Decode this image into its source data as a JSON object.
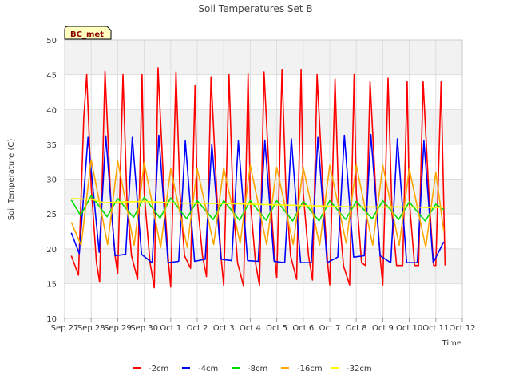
{
  "chart_data": {
    "type": "line",
    "title": "Soil Temperatures Set B",
    "xlabel": "Time",
    "ylabel": "Soil Temperature (C)",
    "station_label": "BC_met",
    "ylim": [
      10,
      50
    ],
    "yticks": [
      10,
      15,
      20,
      25,
      30,
      35,
      40,
      45,
      50
    ],
    "xlim": [
      0,
      15
    ],
    "xticks": [
      {
        "v": 0,
        "label": "Sep 27"
      },
      {
        "v": 1,
        "label": "Sep 28"
      },
      {
        "v": 2,
        "label": "Sep 29"
      },
      {
        "v": 3,
        "label": "Sep 30"
      },
      {
        "v": 4,
        "label": "Oct 1"
      },
      {
        "v": 5,
        "label": "Oct 2"
      },
      {
        "v": 6,
        "label": "Oct 3"
      },
      {
        "v": 7,
        "label": "Oct 4"
      },
      {
        "v": 8,
        "label": "Oct 5"
      },
      {
        "v": 9,
        "label": "Oct 6"
      },
      {
        "v": 10,
        "label": "Oct 7"
      },
      {
        "v": 11,
        "label": "Oct 8"
      },
      {
        "v": 12,
        "label": "Oct 9"
      },
      {
        "v": 13,
        "label": "Oct 10"
      },
      {
        "v": 14,
        "label": "Oct 11"
      },
      {
        "v": 15,
        "label": "Oct 12"
      }
    ],
    "grid": true,
    "legend_position": "bottom",
    "series": [
      {
        "name": "-2cm",
        "color": "#ff0000",
        "x": [
          0.25,
          0.52,
          0.72,
          0.83,
          1.0,
          1.2,
          1.32,
          1.52,
          1.75,
          1.9,
          2.0,
          2.2,
          2.35,
          2.52,
          2.75,
          2.92,
          3.0,
          3.22,
          3.38,
          3.52,
          3.75,
          3.92,
          4.0,
          4.2,
          4.35,
          4.52,
          4.75,
          4.92,
          5.0,
          5.2,
          5.35,
          5.52,
          5.75,
          5.92,
          6.0,
          6.2,
          6.35,
          6.52,
          6.75,
          6.92,
          7.0,
          7.2,
          7.35,
          7.52,
          7.75,
          7.92,
          8.0,
          8.2,
          8.35,
          8.52,
          8.75,
          8.92,
          9.0,
          9.2,
          9.35,
          9.52,
          9.75,
          9.92,
          10.0,
          10.2,
          10.35,
          10.52,
          10.75,
          10.92,
          11.0,
          11.2,
          11.35,
          11.52,
          11.75,
          11.92,
          12.0,
          12.2,
          12.35,
          12.52,
          12.75,
          12.92,
          13.0,
          13.2,
          13.35,
          13.52,
          13.75,
          13.92,
          14.0,
          14.2,
          14.35
        ],
        "y": [
          19.0,
          16.2,
          38.8,
          45.0,
          29.0,
          18.0,
          15.2,
          45.5,
          26.0,
          19.0,
          16.4,
          45.0,
          27.0,
          19.0,
          15.6,
          45.0,
          28.0,
          18.0,
          14.4,
          46.0,
          28.0,
          18.0,
          14.5,
          45.4,
          28.0,
          19.0,
          17.2,
          43.5,
          27.0,
          19.0,
          16.0,
          44.7,
          27.0,
          18.0,
          14.7,
          45.0,
          27.0,
          18.0,
          14.6,
          45.1,
          27.0,
          18.0,
          14.7,
          45.4,
          28.0,
          19.0,
          15.8,
          45.7,
          28.0,
          19.0,
          15.6,
          45.7,
          28.0,
          19.0,
          15.5,
          45.0,
          28.0,
          18.0,
          14.8,
          44.4,
          25.0,
          17.5,
          14.8,
          45.0,
          28.0,
          18.0,
          17.6,
          44.0,
          27.0,
          18.0,
          14.8,
          44.5,
          25.0,
          17.6,
          17.6,
          44.0,
          27.0,
          17.6,
          17.6,
          44.0,
          27.0,
          17.6,
          17.6,
          44.0,
          17.6
        ]
      },
      {
        "name": "-4cm",
        "color": "#0000ff",
        "x": [
          0.25,
          0.55,
          0.88,
          1.3,
          1.55,
          1.9,
          2.3,
          2.55,
          2.9,
          3.3,
          3.55,
          3.9,
          4.3,
          4.55,
          4.9,
          5.3,
          5.55,
          5.9,
          6.3,
          6.55,
          6.9,
          7.3,
          7.55,
          7.9,
          8.3,
          8.55,
          8.9,
          9.3,
          9.55,
          9.9,
          10.3,
          10.55,
          10.9,
          11.3,
          11.55,
          11.9,
          12.3,
          12.55,
          12.9,
          13.3,
          13.55,
          13.9,
          14.3
        ],
        "y": [
          22.3,
          19.3,
          36.0,
          19.5,
          36.2,
          19.0,
          19.2,
          36.0,
          19.2,
          18.0,
          36.3,
          18.0,
          18.2,
          35.5,
          18.2,
          18.5,
          35.0,
          18.5,
          18.3,
          35.5,
          18.3,
          18.2,
          35.6,
          18.2,
          18.0,
          35.8,
          18.0,
          18.0,
          36.0,
          18.0,
          18.8,
          36.3,
          18.8,
          19.0,
          36.4,
          19.0,
          18.0,
          35.8,
          18.0,
          18.0,
          35.5,
          18.0,
          21.0
        ]
      },
      {
        "name": "-8cm",
        "color": "#00dd00",
        "x": [
          0.25,
          0.6,
          1.0,
          1.6,
          2.0,
          2.6,
          3.0,
          3.6,
          4.0,
          4.6,
          5.0,
          5.6,
          6.0,
          6.6,
          7.0,
          7.6,
          8.0,
          8.6,
          9.0,
          9.6,
          10.0,
          10.6,
          11.0,
          11.6,
          12.0,
          12.6,
          13.0,
          13.6,
          14.0,
          14.3
        ],
        "y": [
          27.0,
          24.8,
          27.6,
          24.6,
          27.2,
          24.5,
          27.4,
          24.4,
          27.3,
          24.3,
          26.9,
          24.2,
          26.9,
          24.1,
          26.9,
          24.1,
          26.9,
          24.0,
          26.8,
          24.0,
          26.9,
          24.2,
          26.8,
          24.3,
          26.9,
          24.2,
          26.7,
          24.0,
          26.4,
          25.6
        ]
      },
      {
        "name": "-16cm",
        "color": "#ffa500",
        "x": [
          0.25,
          0.62,
          1.0,
          1.62,
          2.0,
          2.62,
          3.0,
          3.62,
          4.0,
          4.62,
          5.0,
          5.62,
          6.0,
          6.62,
          7.0,
          7.62,
          8.0,
          8.62,
          9.0,
          9.62,
          10.0,
          10.62,
          11.0,
          11.62,
          12.0,
          12.62,
          13.0,
          13.62,
          14.0,
          14.3
        ],
        "y": [
          23.8,
          20.5,
          32.8,
          20.6,
          32.6,
          20.5,
          32.4,
          20.2,
          31.5,
          20.2,
          31.5,
          20.6,
          31.6,
          20.8,
          32.0,
          20.6,
          31.7,
          20.6,
          31.7,
          20.5,
          32.0,
          20.8,
          32.0,
          20.5,
          32.0,
          20.5,
          31.5,
          20.2,
          31.0,
          22.5
        ]
      },
      {
        "name": "-32cm",
        "color": "#ffff00",
        "x": [
          0.25,
          1.0,
          1.5,
          2.0,
          3.0,
          4.0,
          5.0,
          6.0,
          7.0,
          8.0,
          9.0,
          10.0,
          11.0,
          12.0,
          13.0,
          14.0,
          14.3
        ],
        "y": [
          27.2,
          27.1,
          26.6,
          26.7,
          26.8,
          26.6,
          26.5,
          26.5,
          26.4,
          26.3,
          26.2,
          26.1,
          26.0,
          26.0,
          26.0,
          25.9,
          26.0
        ]
      }
    ]
  }
}
